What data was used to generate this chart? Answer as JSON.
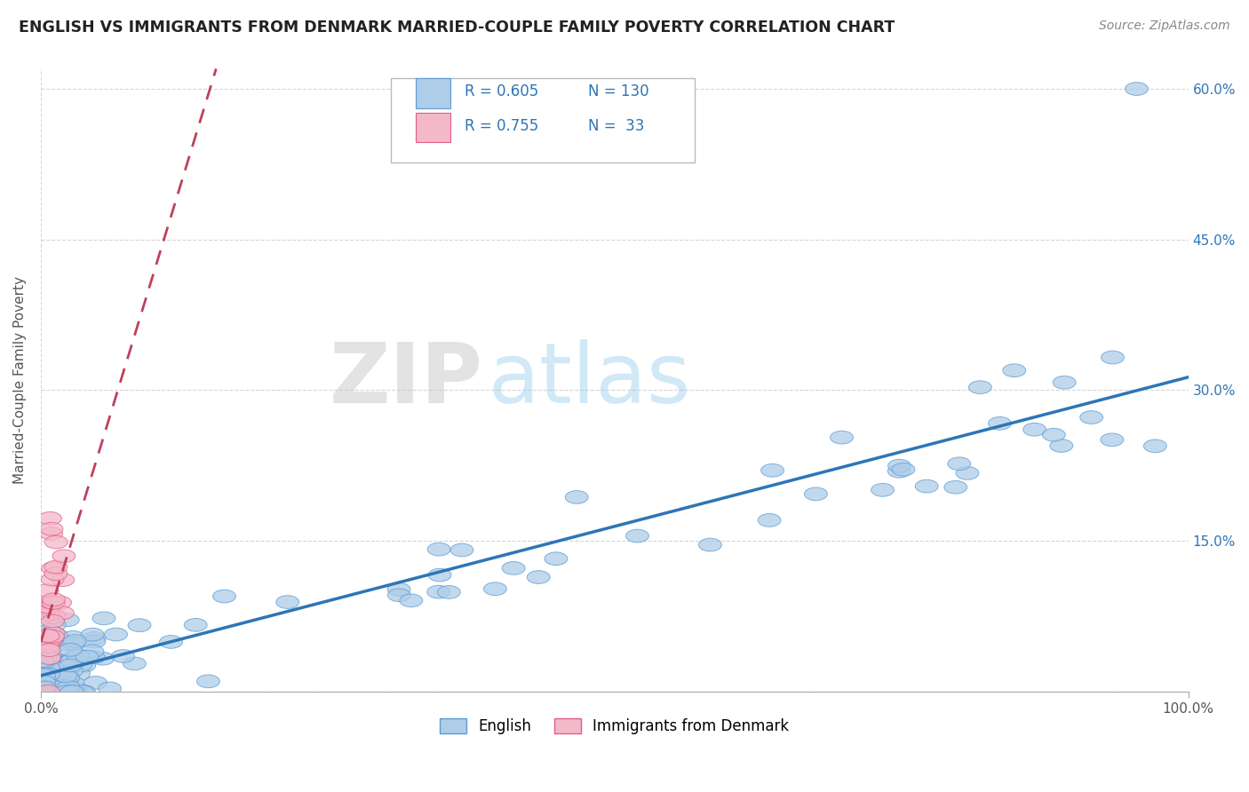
{
  "title": "ENGLISH VS IMMIGRANTS FROM DENMARK MARRIED-COUPLE FAMILY POVERTY CORRELATION CHART",
  "source": "Source: ZipAtlas.com",
  "ylabel": "Married-Couple Family Poverty",
  "xlim": [
    0.0,
    1.0
  ],
  "ylim": [
    0.0,
    0.62
  ],
  "ytick_positions": [
    0.0,
    0.15,
    0.3,
    0.45,
    0.6
  ],
  "yticklabels_right": [
    "",
    "15.0%",
    "30.0%",
    "45.0%",
    "60.0%"
  ],
  "english_R": 0.605,
  "english_N": 130,
  "immigrants_R": 0.755,
  "immigrants_N": 33,
  "english_color": "#aecde8",
  "english_edge_color": "#5b9bd5",
  "english_line_color": "#2e75b6",
  "immigrants_color": "#f4b8cb",
  "immigrants_edge_color": "#e06080",
  "immigrants_line_color": "#c0405a",
  "text_color_dark": "#333333",
  "text_color_blue": "#2e75b6",
  "text_color_right": "#2e75b6",
  "watermark_zip_color": "#cccccc",
  "watermark_atlas_color": "#99ccee",
  "background_color": "#ffffff",
  "grid_color": "#cccccc"
}
